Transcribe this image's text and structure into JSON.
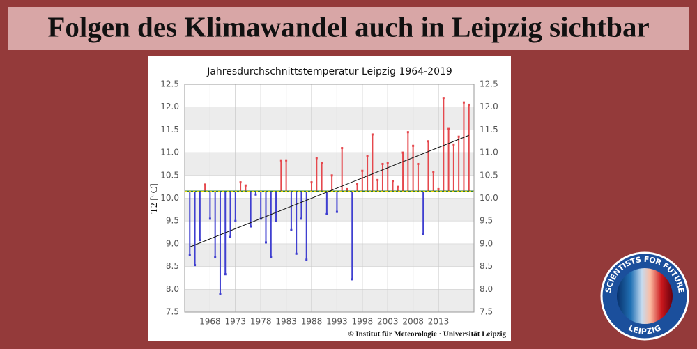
{
  "header": {
    "title": "Folgen des Klimawandel auch in Leipzig sichtbar"
  },
  "chart_data": {
    "type": "lollipop",
    "title": "Jahresdurchschnittstemperatur Leipzig 1964-2019",
    "y_label": "T2 [°C]",
    "credit": "© Institut für Meteorologie · Universität Leipzig",
    "x": [
      1964,
      1965,
      1966,
      1967,
      1968,
      1969,
      1970,
      1971,
      1972,
      1973,
      1974,
      1975,
      1976,
      1977,
      1978,
      1979,
      1980,
      1981,
      1982,
      1983,
      1984,
      1985,
      1986,
      1987,
      1988,
      1989,
      1990,
      1991,
      1992,
      1993,
      1994,
      1995,
      1996,
      1997,
      1998,
      1999,
      2000,
      2001,
      2002,
      2003,
      2004,
      2005,
      2006,
      2007,
      2008,
      2009,
      2010,
      2011,
      2012,
      2013,
      2014,
      2015,
      2016,
      2017,
      2018,
      2019
    ],
    "values": [
      8.75,
      8.53,
      9.08,
      10.3,
      9.55,
      8.7,
      7.9,
      8.33,
      9.15,
      9.5,
      10.35,
      10.28,
      9.38,
      10.08,
      9.55,
      9.03,
      8.7,
      9.5,
      10.83,
      10.83,
      9.3,
      8.78,
      9.55,
      8.65,
      10.35,
      10.88,
      10.78,
      9.65,
      10.5,
      9.7,
      11.1,
      10.2,
      8.22,
      10.32,
      10.6,
      10.93,
      11.4,
      10.4,
      10.75,
      10.77,
      10.38,
      10.25,
      11.0,
      11.45,
      11.15,
      10.75,
      9.22,
      11.25,
      10.58,
      10.2,
      12.2,
      11.52,
      11.18,
      11.35,
      12.1,
      12.05
    ],
    "baseline": 10.15,
    "above_color": "#e5484d",
    "below_color": "#3f3fd0",
    "trend_x": [
      1964,
      2019
    ],
    "trend": [
      8.93,
      11.38
    ],
    "xlim": [
      1963,
      2020
    ],
    "xticks": [
      1968,
      1973,
      1978,
      1983,
      1988,
      1993,
      1998,
      2003,
      2008,
      2013
    ],
    "ylim": [
      7.5,
      12.5
    ],
    "yticks": [
      7.5,
      {
        "value": 8,
        "label": "8.0"
      },
      8.5,
      {
        "value": 9,
        "label": "9.0"
      },
      9.5,
      {
        "value": 10,
        "label": "10.0"
      },
      10.5,
      {
        "value": 11,
        "label": "11.0"
      },
      11.5,
      {
        "value": 12,
        "label": "12.0"
      },
      12.5
    ],
    "grid": true
  },
  "logo": {
    "top": "SCIENTISTS FOR FUTURE",
    "bottom": "LEIPZIG"
  }
}
